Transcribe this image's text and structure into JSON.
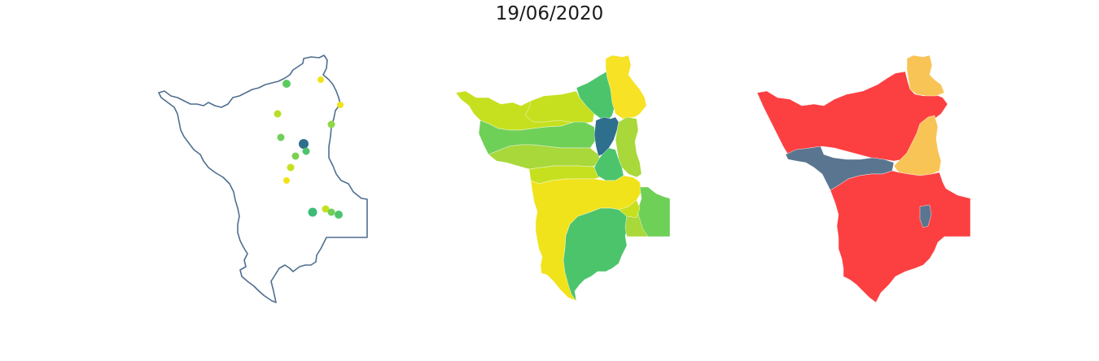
{
  "title": "19/06/2020",
  "colors": {
    "outline": "#4f6f8f",
    "viridis_dark": "#2f6f8e",
    "viridis_green": "#4cc46c",
    "viridis_mid_green": "#6fd058",
    "viridis_lime": "#a8d83a",
    "viridis_yellow_green": "#c6e020",
    "viridis_yellow": "#f0e31c",
    "risk_red": "#fc4042",
    "risk_orange": "#f9c456",
    "risk_slate": "#5a7590"
  },
  "panels": [
    {
      "name": "station-points-map"
    },
    {
      "name": "subbasin-choropleth-map"
    },
    {
      "name": "risk-category-map"
    }
  ]
}
